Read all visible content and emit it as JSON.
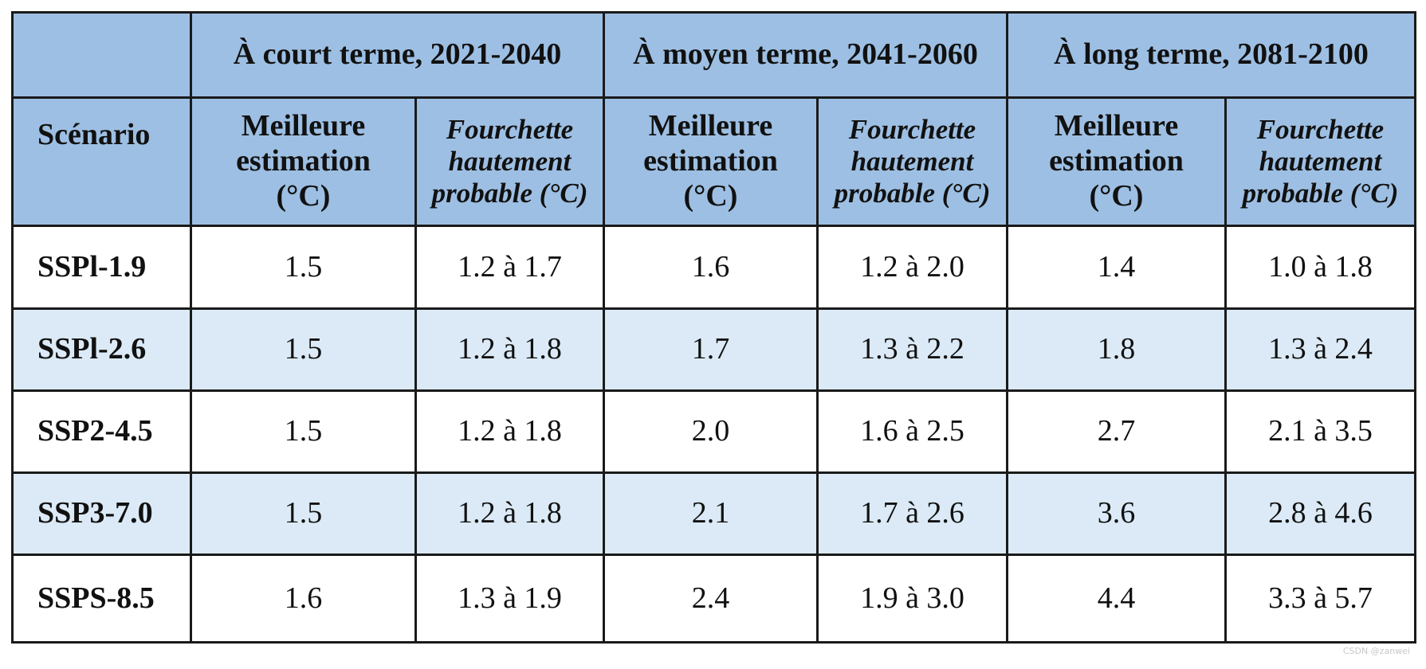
{
  "header": {
    "periods": [
      "À court terme, 2021-2040",
      "À moyen terme, 2041-2060",
      "À long terme, 2081-2100"
    ],
    "scenario_label": "Scénario",
    "best_estimate": [
      "Meilleure",
      "estimation",
      "(°C)"
    ],
    "likely_range": [
      "Fourchette",
      "hautement",
      "probable (°C)"
    ]
  },
  "rows": [
    {
      "scenario": "SSPl-1.9",
      "values": [
        "1.5",
        "1.2 à 1.7",
        "1.6",
        "1.2 à 2.0",
        "1.4",
        "1.0 à 1.8"
      ]
    },
    {
      "scenario": "SSPl-2.6",
      "values": [
        "1.5",
        "1.2 à 1.8",
        "1.7",
        "1.3 à 2.2",
        "1.8",
        "1.3 à 2.4"
      ]
    },
    {
      "scenario": "SSP2-4.5",
      "values": [
        "1.5",
        "1.2 à 1.8",
        "2.0",
        "1.6 à 2.5",
        "2.7",
        "2.1 à 3.5"
      ]
    },
    {
      "scenario": "SSP3-7.0",
      "values": [
        "1.5",
        "1.2 à 1.8",
        "2.1",
        "1.7 à 2.6",
        "3.6",
        "2.8 à 4.6"
      ]
    },
    {
      "scenario": "SSPS-8.5",
      "values": [
        "1.6",
        "1.3 à 1.9",
        "2.4",
        "1.9 à 3.0",
        "4.4",
        "3.3 à 5.7"
      ]
    }
  ],
  "colors": {
    "header_bg": "#9dbfe3",
    "alt_row_bg": "#dbeaf6",
    "border": "#1a1a1a"
  },
  "watermark": "CSDN @zanwei"
}
